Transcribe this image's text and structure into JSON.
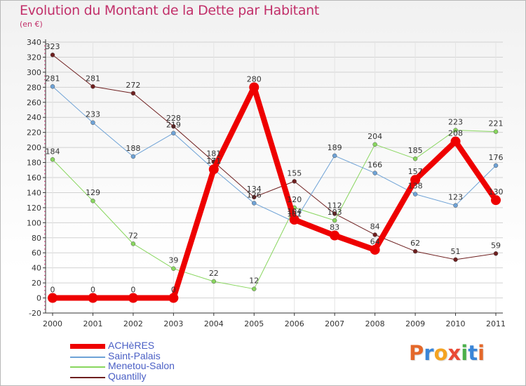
{
  "title": "Evolution du Montant de la Dette par Habitant",
  "unit": "(en €)",
  "brand": {
    "text": "Proxiti",
    "colors": [
      "#e4682a",
      "#3a86d8",
      "#f4a321",
      "#e94a36",
      "#4bb04a",
      "#3a86d8",
      "#e4682a"
    ]
  },
  "chart_data": {
    "type": "line",
    "x": [
      "2000",
      "2001",
      "2002",
      "2003",
      "2004",
      "2005",
      "2006",
      "2007",
      "2008",
      "2009",
      "2010",
      "2011"
    ],
    "ylim": [
      -20,
      340
    ],
    "yticks": [
      -20,
      0,
      20,
      40,
      60,
      80,
      100,
      120,
      140,
      160,
      180,
      200,
      220,
      240,
      260,
      280,
      300,
      320,
      340
    ],
    "grid": true,
    "legend_position": "bottom-left",
    "series": [
      {
        "name": "Quantilly",
        "color": "#6e1f1f",
        "values": [
          323,
          281,
          272,
          228,
          181,
          134,
          155,
          112,
          84,
          62,
          51,
          59
        ]
      },
      {
        "name": "Menetou-Salon",
        "color": "#88d65e",
        "values": [
          184,
          129,
          72,
          39,
          22,
          12,
          120,
          103,
          204,
          185,
          223,
          221
        ]
      },
      {
        "name": "Saint-Palais",
        "color": "#6ea2d6",
        "values": [
          281,
          233,
          188,
          219,
          171,
          126,
          101,
          189,
          166,
          138,
          123,
          176
        ]
      },
      {
        "name": "ACHèRES",
        "color": "#ee0000",
        "values": [
          0,
          0,
          0,
          0,
          171,
          280,
          104,
          83,
          64,
          157,
          208,
          130
        ]
      }
    ],
    "legend_order": [
      "ACHèRES",
      "Saint-Palais",
      "Menetou-Salon",
      "Quantilly"
    ]
  }
}
